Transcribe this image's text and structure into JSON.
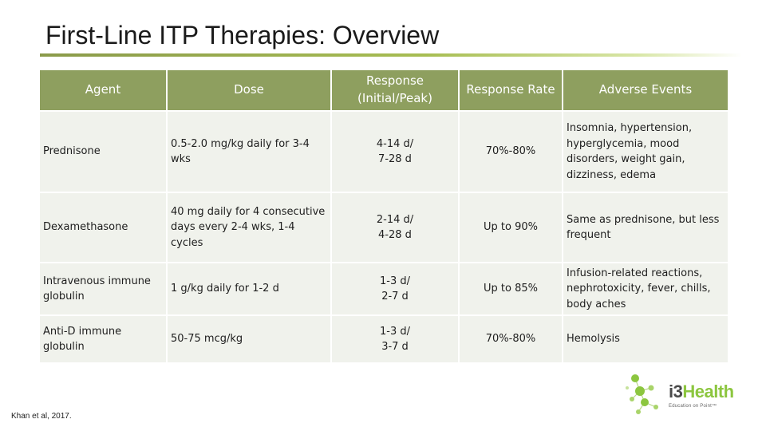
{
  "slide": {
    "title": "First-Line ITP Therapies: Overview",
    "citation": "Khan et al, 2017."
  },
  "table": {
    "headers": {
      "agent": "Agent",
      "dose": "Dose",
      "response_line1": "Response",
      "response_line2": "(Initial/Peak)",
      "rate": "Response Rate",
      "adverse": "Adverse Events"
    },
    "rows": [
      {
        "agent": "Prednisone",
        "dose": "0.5-2.0 mg/kg daily for 3-4 wks",
        "response_initial": "4-14 d/",
        "response_peak": "7-28 d",
        "rate": "70%-80%",
        "adverse": "Insomnia, hypertension, hyperglycemia, mood disorders, weight gain, dizziness, edema"
      },
      {
        "agent": "Dexamethasone",
        "dose": "40 mg daily for 4 consecutive days every 2-4 wks, 1-4 cycles",
        "response_initial": "2-14 d/",
        "response_peak": "4-28 d",
        "rate": "Up to 90%",
        "adverse": "Same as prednisone, but less frequent"
      },
      {
        "agent": "Intravenous immune globulin",
        "dose": "1 g/kg daily for 1-2 d",
        "response_initial": "1-3 d/",
        "response_peak": "2-7 d",
        "rate": "Up to 85%",
        "adverse": "Infusion-related reactions, nephrotoxicity, fever, chills, body aches"
      },
      {
        "agent": "Anti-D immune globulin",
        "dose": "50-75 mcg/kg",
        "response_initial": "1-3 d/",
        "response_peak": "3-7 d",
        "rate": "70%-80%",
        "adverse": "Hemolysis"
      }
    ]
  },
  "logo": {
    "word_i3": "i3",
    "word_health": "Health",
    "tagline": "Education on Point™",
    "icon": "molecule-dots-icon",
    "colors": {
      "green": "#8cc63f",
      "gray": "#4a4a4a"
    }
  },
  "colors": {
    "header_bg": "#8e9f5f",
    "cell_bg": "#f0f2ec",
    "title_rule": "#a7bd52"
  }
}
